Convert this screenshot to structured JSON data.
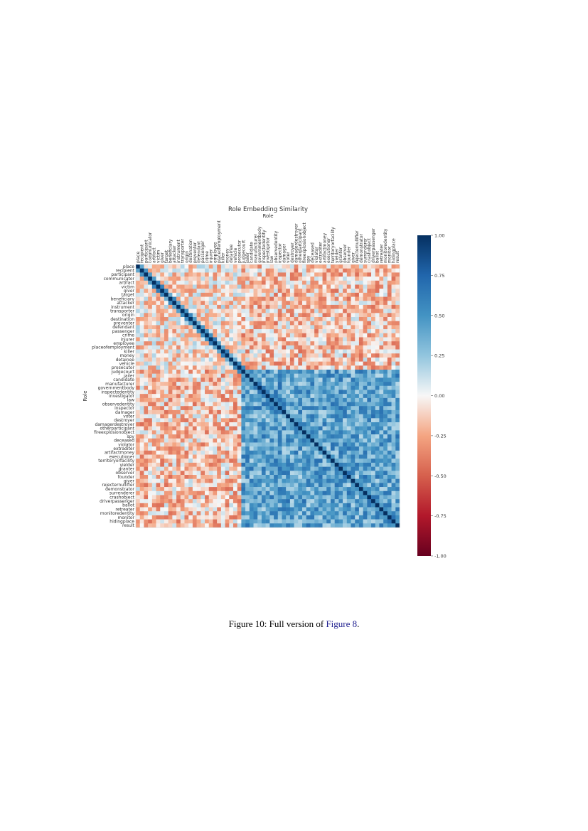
{
  "chart_data": {
    "type": "heatmap",
    "title": "Role Embedding Similarity",
    "xlabel": "Role",
    "ylabel": "Role",
    "value_range": [
      -1.0,
      1.0
    ],
    "colormap": "RdBu",
    "colorbar_ticks": [
      "1.00",
      "0.75",
      "0.50",
      "0.25",
      "0.00",
      "-0.25",
      "-0.50",
      "-0.75",
      "-1.00"
    ],
    "legend": "colorbar right",
    "roles": [
      "place",
      "recipient",
      "participant",
      "communicator",
      "artifact",
      "victim",
      "giver",
      "target",
      "beneficiary",
      "attacker",
      "instrument",
      "transporter",
      "origin",
      "destination",
      "preventer",
      "defendant",
      "passenger",
      "crime",
      "injurer",
      "employee",
      "placeofemployment",
      "killer",
      "money",
      "detainee",
      "vehicle",
      "prosecutor",
      "judgecourt",
      "jailer",
      "candidate",
      "manufacturer",
      "governmentbody",
      "inspectedentity",
      "investigator",
      "law",
      "observedentity",
      "inspector",
      "damager",
      "voter",
      "destroyer",
      "damagerdestroyer",
      "otherparticipant",
      "fireexplosionobject",
      "spy",
      "deceased",
      "violator",
      "extraditer",
      "artifactmoney",
      "executioner",
      "territoryorfacility",
      "yielder",
      "granter",
      "observer",
      "founder",
      "giver",
      "rejecternullifier",
      "demonstrator",
      "surrenderer",
      "crashobject",
      "driverpassenger",
      "ballot",
      "retreater",
      "monitoredentity",
      "monitor",
      "hidingplace",
      "result"
    ],
    "value_note": "symmetric similarity matrix, diagonal = 1.00; off-diagonal values approximated from cell colours",
    "values": []
  },
  "caption": {
    "text": "Figure 10: Full version of ",
    "ref": "Figure 8",
    "end": "."
  }
}
